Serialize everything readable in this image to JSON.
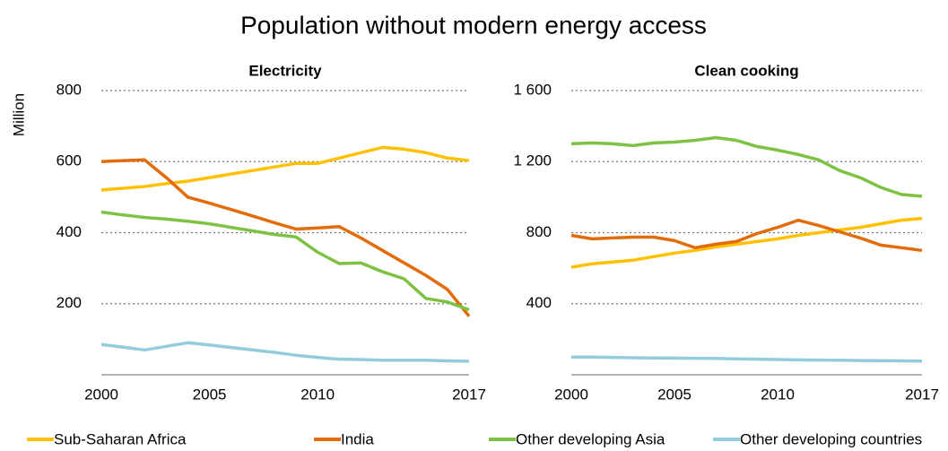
{
  "title": "Population without modern energy access",
  "y_label": "Million",
  "chart_data": [
    {
      "type": "line",
      "title": "Electricity",
      "x": [
        2000,
        2001,
        2002,
        2003,
        2004,
        2005,
        2006,
        2007,
        2008,
        2009,
        2010,
        2011,
        2012,
        2013,
        2014,
        2015,
        2016,
        2017
      ],
      "xlim": [
        2000,
        2017
      ],
      "xticks": [
        2000,
        2005,
        2010,
        2017
      ],
      "ylim": [
        0,
        800
      ],
      "yticks": [
        200,
        400,
        600,
        800
      ],
      "grid": true,
      "series": [
        {
          "name": "Sub-Saharan Africa",
          "color": "#ffc000",
          "values": [
            520,
            525,
            530,
            538,
            545,
            555,
            565,
            575,
            585,
            595,
            595,
            610,
            625,
            640,
            635,
            625,
            610,
            603
          ]
        },
        {
          "name": "India",
          "color": "#e36c0a",
          "values": [
            600,
            603,
            605,
            555,
            500,
            483,
            465,
            447,
            428,
            410,
            413,
            417,
            385,
            350,
            315,
            280,
            240,
            165
          ]
        },
        {
          "name": "Other developing Asia",
          "color": "#7dc242",
          "values": [
            458,
            450,
            443,
            438,
            432,
            425,
            415,
            405,
            395,
            388,
            345,
            313,
            315,
            290,
            270,
            215,
            205,
            183
          ]
        },
        {
          "name": "Other developing countries",
          "color": "#93cddd",
          "values": [
            85,
            78,
            70,
            80,
            90,
            84,
            77,
            70,
            63,
            55,
            49,
            44,
            43,
            41,
            41,
            41,
            39,
            38
          ]
        }
      ]
    },
    {
      "type": "line",
      "title": "Clean cooking",
      "x": [
        2000,
        2001,
        2002,
        2003,
        2004,
        2005,
        2006,
        2007,
        2008,
        2009,
        2010,
        2011,
        2012,
        2013,
        2014,
        2015,
        2016,
        2017
      ],
      "xlim": [
        2000,
        2017
      ],
      "xticks": [
        2000,
        2005,
        2010,
        2017
      ],
      "ylim": [
        0,
        1600
      ],
      "yticks": [
        400,
        800,
        {
          "value": 1200,
          "label": "1 200"
        },
        {
          "value": 1600,
          "label": "1 600"
        }
      ],
      "grid": true,
      "series": [
        {
          "color": "#ffc000",
          "values": [
            605,
            625,
            635,
            645,
            665,
            685,
            700,
            720,
            735,
            750,
            765,
            785,
            800,
            815,
            830,
            850,
            870,
            880
          ]
        },
        {
          "color": "#e36c0a",
          "values": [
            785,
            765,
            770,
            775,
            775,
            755,
            715,
            735,
            750,
            795,
            830,
            870,
            840,
            805,
            770,
            730,
            715,
            700
          ]
        },
        {
          "color": "#7dc242",
          "values": [
            1300,
            1305,
            1300,
            1290,
            1305,
            1310,
            1320,
            1335,
            1320,
            1285,
            1265,
            1240,
            1210,
            1150,
            1110,
            1055,
            1015,
            1005
          ]
        },
        {
          "color": "#93cddd",
          "values": [
            100,
            100,
            98,
            96,
            95,
            94,
            93,
            92,
            90,
            88,
            86,
            84,
            83,
            82,
            80,
            79,
            78,
            77
          ]
        }
      ]
    }
  ]
}
